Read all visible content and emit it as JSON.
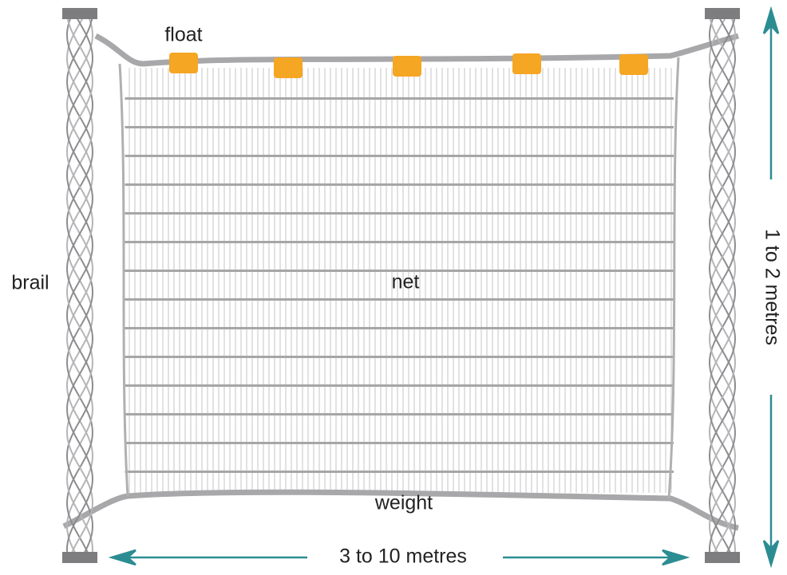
{
  "labels": {
    "float": "float",
    "brail": "brail",
    "net": "net",
    "weight": "weight",
    "width": "3 to 10 metres",
    "height": "1 to 2 metres"
  }
}
